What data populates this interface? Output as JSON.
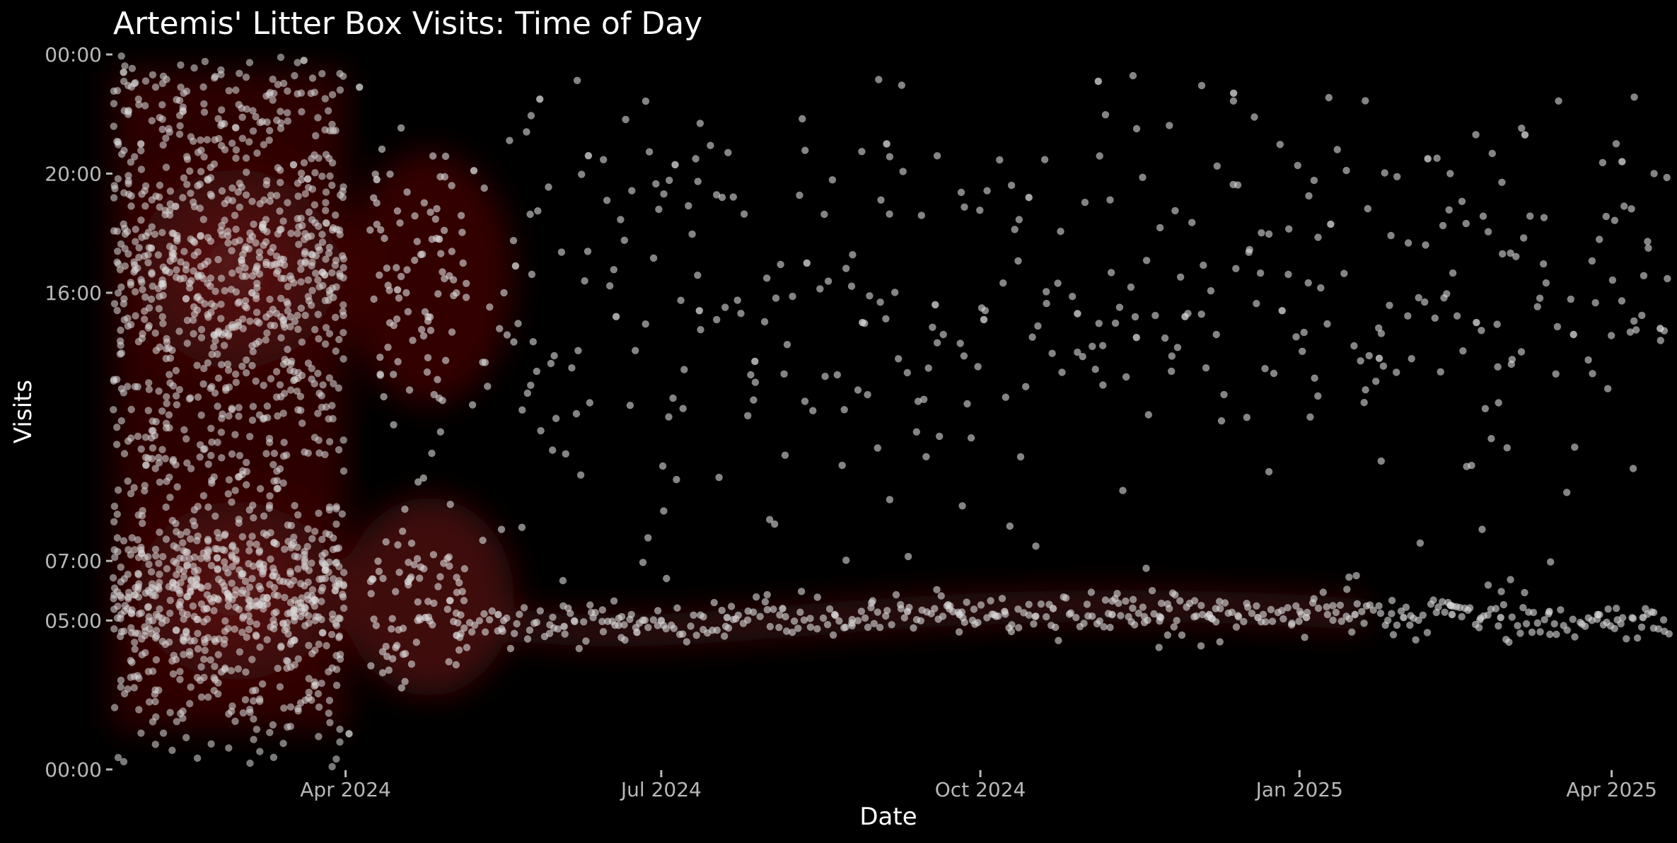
{
  "chart_data": {
    "type": "scatter",
    "title": "Artemis' Litter Box Visits: Time of Day",
    "xlabel": "Date",
    "ylabel": "Visits",
    "x_type": "date",
    "xlim": [
      "2024-01-25",
      "2025-04-18"
    ],
    "x_ticks": [
      {
        "value": "2024-04-01",
        "label": "Apr 2024"
      },
      {
        "value": "2024-07-01",
        "label": "Jul 2024"
      },
      {
        "value": "2024-10-01",
        "label": "Oct 2024"
      },
      {
        "value": "2025-01-01",
        "label": "Jan 2025"
      },
      {
        "value": "2025-04-01",
        "label": "Apr 2025"
      }
    ],
    "y_direction": "reversed",
    "ylim": [
      "24:00",
      "00:00"
    ],
    "y_ticks": [
      {
        "value": 24,
        "label": "00:00"
      },
      {
        "value": 20,
        "label": "20:00"
      },
      {
        "value": 16,
        "label": "16:00"
      },
      {
        "value": 7,
        "label": "07:00"
      },
      {
        "value": 5,
        "label": "05:00"
      },
      {
        "value": 0,
        "label": "00:00"
      }
    ],
    "grid": false,
    "legend": "none",
    "background_color": "#000000",
    "point_color": "#dcdcdc",
    "density_color": "#8b1a1a",
    "density_overlay": true,
    "points": [
      [
        "2024-01-28",
        23.4
      ],
      [
        "2024-02-02",
        21.0
      ],
      [
        "2024-02-05",
        17.5
      ],
      [
        "2024-02-08",
        16.3
      ],
      [
        "2024-02-12",
        18.9
      ],
      [
        "2024-02-15",
        15.8
      ],
      [
        "2024-02-18",
        6.2
      ],
      [
        "2024-02-21",
        5.4
      ],
      [
        "2024-02-24",
        7.1
      ],
      [
        "2024-02-27",
        5.9
      ],
      [
        "2024-03-02",
        17.1
      ],
      [
        "2024-03-05",
        16.0
      ],
      [
        "2024-03-08",
        18.2
      ],
      [
        "2024-03-11",
        6.5
      ],
      [
        "2024-03-14",
        4.9
      ],
      [
        "2024-03-17",
        20.3
      ],
      [
        "2024-03-20",
        23.8
      ],
      [
        "2024-03-23",
        5.7
      ],
      [
        "2024-03-26",
        16.6
      ],
      [
        "2024-03-29",
        6.0
      ],
      [
        "2024-04-02",
        1.2
      ],
      [
        "2024-04-05",
        22.9
      ],
      [
        "2024-04-10",
        19.8
      ],
      [
        "2024-04-16",
        16.1
      ],
      [
        "2024-04-19",
        6.3
      ],
      [
        "2024-04-24",
        5.1
      ],
      [
        "2024-04-28",
        17.8
      ],
      [
        "2024-05-03",
        4.5
      ],
      [
        "2024-05-08",
        20.1
      ],
      [
        "2024-05-15",
        5.2
      ],
      [
        "2024-05-20",
        16.9
      ],
      [
        "2024-05-27",
        22.5
      ],
      [
        "2024-06-03",
        4.8
      ],
      [
        "2024-06-10",
        20.6
      ],
      [
        "2024-06-18",
        15.2
      ],
      [
        "2024-06-24",
        4.6
      ],
      [
        "2024-07-01",
        5.0
      ],
      [
        "2024-07-05",
        20.3
      ],
      [
        "2024-07-12",
        15.4
      ],
      [
        "2024-07-20",
        5.1
      ],
      [
        "2024-07-28",
        13.7
      ],
      [
        "2024-08-05",
        5.4
      ],
      [
        "2024-08-12",
        17.0
      ],
      [
        "2024-08-20",
        5.2
      ],
      [
        "2024-08-28",
        15.0
      ],
      [
        "2024-09-04",
        21.0
      ],
      [
        "2024-09-10",
        5.3
      ],
      [
        "2024-09-18",
        15.6
      ],
      [
        "2024-09-25",
        5.2
      ],
      [
        "2024-10-02",
        15.1
      ],
      [
        "2024-10-08",
        5.3
      ],
      [
        "2024-10-15",
        19.2
      ],
      [
        "2024-10-22",
        5.4
      ],
      [
        "2024-10-29",
        15.3
      ],
      [
        "2024-11-04",
        23.1
      ],
      [
        "2024-11-08",
        5.2
      ],
      [
        "2024-11-15",
        14.5
      ],
      [
        "2024-11-22",
        5.1
      ],
      [
        "2024-11-29",
        15.2
      ],
      [
        "2024-12-06",
        5.2
      ],
      [
        "2024-12-13",
        22.7
      ],
      [
        "2024-12-20",
        5.1
      ],
      [
        "2024-12-27",
        15.4
      ],
      [
        "2025-01-03",
        5.1
      ],
      [
        "2025-01-10",
        18.3
      ],
      [
        "2025-01-17",
        5.2
      ],
      [
        "2025-01-24",
        13.8
      ],
      [
        "2025-01-31",
        5.1
      ],
      [
        "2025-02-07",
        20.5
      ],
      [
        "2025-02-14",
        5.2
      ],
      [
        "2025-02-21",
        15.0
      ],
      [
        "2025-02-28",
        5.1
      ],
      [
        "2025-03-07",
        21.3
      ],
      [
        "2025-03-14",
        5.3
      ],
      [
        "2025-03-21",
        14.6
      ],
      [
        "2025-03-28",
        5.2
      ],
      [
        "2025-04-04",
        20.4
      ],
      [
        "2025-04-10",
        5.1
      ],
      [
        "2025-04-15",
        14.8
      ]
    ]
  }
}
